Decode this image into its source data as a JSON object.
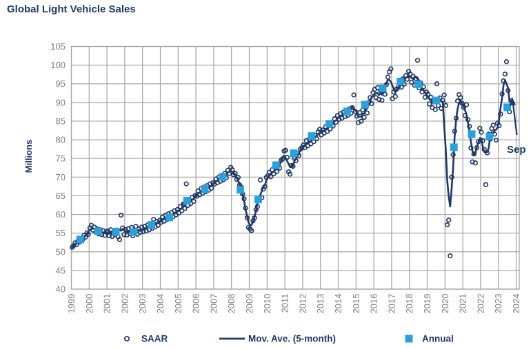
{
  "title": "Global Light Vehicle Sales",
  "chart_data": {
    "type": "line+scatter",
    "title": "Global Light Vehicle Sales",
    "ylabel": "Millions",
    "ylim": [
      40,
      105
    ],
    "ytick_step": 5,
    "x_years": [
      1999,
      2000,
      2001,
      2002,
      2003,
      2004,
      2005,
      2006,
      2007,
      2008,
      2009,
      2010,
      2011,
      2012,
      2013,
      2014,
      2015,
      2016,
      2017,
      2018,
      2019,
      2020,
      2021,
      2022,
      2023,
      2024
    ],
    "saar_start": {
      "year": 1999,
      "month": 1
    },
    "saar_monthly": [
      51.2,
      51.6,
      52.4,
      51.9,
      52.9,
      52.6,
      53.5,
      53.2,
      54.4,
      53.9,
      55.1,
      54.7,
      56.4,
      57.1,
      55.8,
      56.6,
      55.2,
      56.1,
      54.8,
      55.9,
      54.6,
      55.7,
      54.4,
      55.3,
      55.6,
      54.3,
      55.9,
      54.1,
      55.4,
      54.6,
      55.8,
      54.0,
      53.3,
      59.8,
      56.4,
      54.6,
      55.9,
      54.5,
      56.2,
      54.9,
      56.5,
      54.3,
      55.7,
      56.8,
      54.7,
      56.1,
      55.2,
      56.6,
      55.4,
      56.8,
      55.6,
      57.2,
      55.9,
      57.6,
      56.3,
      58.7,
      56.7,
      58.1,
      57.1,
      58.4,
      57.9,
      59.3,
      58.2,
      59.8,
      58.6,
      60.2,
      58.9,
      60.5,
      59.4,
      61.0,
      59.9,
      61.3,
      60.4,
      62.1,
      61.0,
      62.8,
      61.6,
      68.2,
      62.4,
      63.9,
      62.9,
      64.6,
      63.5,
      65.1,
      64.9,
      66.3,
      65.3,
      66.9,
      65.7,
      67.3,
      66.1,
      67.7,
      66.5,
      68.2,
      67.0,
      68.5,
      68.1,
      69.5,
      68.5,
      70.0,
      68.9,
      70.5,
      69.3,
      71.0,
      69.8,
      71.8,
      71.0,
      72.6,
      72.0,
      70.6,
      71.0,
      69.4,
      69.9,
      67.9,
      67.3,
      65.5,
      64.2,
      61.7,
      59.1,
      56.5,
      56.1,
      55.7,
      58.3,
      59.1,
      61.3,
      62.1,
      63.9,
      69.2,
      64.5,
      66.8,
      67.5,
      69.9,
      70.4,
      71.3,
      70.1,
      72.0,
      70.9,
      72.6,
      71.5,
      73.3,
      72.4,
      74.5,
      74.9,
      77.0,
      77.2,
      75.3,
      71.4,
      70.8,
      73.1,
      72.9,
      75.0,
      74.4,
      76.3,
      75.8,
      77.5,
      77.9,
      78.6,
      77.9,
      79.8,
      78.4,
      80.1,
      78.9,
      80.5,
      79.5,
      81.2,
      80.3,
      82.1,
      82.8,
      81.3,
      82.6,
      81.8,
      83.5,
      82.2,
      84.0,
      82.9,
      84.6,
      83.7,
      85.6,
      84.7,
      86.5,
      85.5,
      87.0,
      85.8,
      87.4,
      86.2,
      87.8,
      86.6,
      88.3,
      87.1,
      88.6,
      92.0,
      87.6,
      86.3,
      84.6,
      87.3,
      85.0,
      88.0,
      86.0,
      88.6,
      87.2,
      90.0,
      91.3,
      89.7,
      92.6,
      93.5,
      91.3,
      94.0,
      90.8,
      93.2,
      90.6,
      93.6,
      92.2,
      94.8,
      96.8,
      98.2,
      99.0,
      91.0,
      92.8,
      91.6,
      93.6,
      94.2,
      95.6,
      94.1,
      96.3,
      94.9,
      97.2,
      96.2,
      98.3,
      97.6,
      95.4,
      97.0,
      94.6,
      96.4,
      101.3,
      93.9,
      95.3,
      92.8,
      94.2,
      91.4,
      92.8,
      92.2,
      89.6,
      91.4,
      88.6,
      90.8,
      88.1,
      95.0,
      89.2,
      91.2,
      88.4,
      90.5,
      92.0,
      89.2,
      57.2,
      58.5,
      48.9,
      70.0,
      76.0,
      82.3,
      85.8,
      90.4,
      92.1,
      91.3,
      89.8,
      88.7,
      86.5,
      89.4,
      85.4,
      83.6,
      77.8,
      74.1,
      76.2,
      73.8,
      77.9,
      79.5,
      83.1,
      82.0,
      79.8,
      77.4,
      68.0,
      76.5,
      81.5,
      80.2,
      83.0,
      83.9,
      81.5,
      79.9,
      84.5,
      83.8,
      86.9,
      92.3,
      95.8,
      97.6,
      100.9,
      93.2,
      87.5,
      90.4
    ],
    "moving_average_window": 5,
    "annual": [
      {
        "year": 1999,
        "value": 53.3
      },
      {
        "year": 2000,
        "value": 55.5
      },
      {
        "year": 2001,
        "value": 55.4
      },
      {
        "year": 2002,
        "value": 55.3
      },
      {
        "year": 2003,
        "value": 57.2
      },
      {
        "year": 2004,
        "value": 59.2
      },
      {
        "year": 2005,
        "value": 63.7
      },
      {
        "year": 2006,
        "value": 66.8
      },
      {
        "year": 2007,
        "value": 70.1
      },
      {
        "year": 2008,
        "value": 66.6
      },
      {
        "year": 2009,
        "value": 64.0
      },
      {
        "year": 2010,
        "value": 73.2
      },
      {
        "year": 2011,
        "value": 76.4
      },
      {
        "year": 2012,
        "value": 81.0
      },
      {
        "year": 2013,
        "value": 84.3
      },
      {
        "year": 2014,
        "value": 87.6
      },
      {
        "year": 2015,
        "value": 89.4
      },
      {
        "year": 2016,
        "value": 93.8
      },
      {
        "year": 2017,
        "value": 95.6
      },
      {
        "year": 2018,
        "value": 94.9
      },
      {
        "year": 2019,
        "value": 90.5
      },
      {
        "year": 2020,
        "value": 78.0
      },
      {
        "year": 2021,
        "value": 81.5
      },
      {
        "year": 2022,
        "value": 80.9
      },
      {
        "year": 2023,
        "value": 88.7
      }
    ],
    "annotation": {
      "text": "Sep"
    },
    "legend": [
      {
        "label": "SAAR",
        "marker": "circle"
      },
      {
        "label": "Mov. Ave. (5-month)",
        "marker": "line"
      },
      {
        "label": "Annual",
        "marker": "square"
      }
    ],
    "colors": {
      "navy": "#1F3864",
      "line": "#1F3864",
      "scatter": "#1F3864",
      "annual": "#2BA0DC",
      "grid": "#A6A6A6",
      "tick": "#7F7F7F"
    },
    "grid": true,
    "legend_position": "bottom"
  }
}
